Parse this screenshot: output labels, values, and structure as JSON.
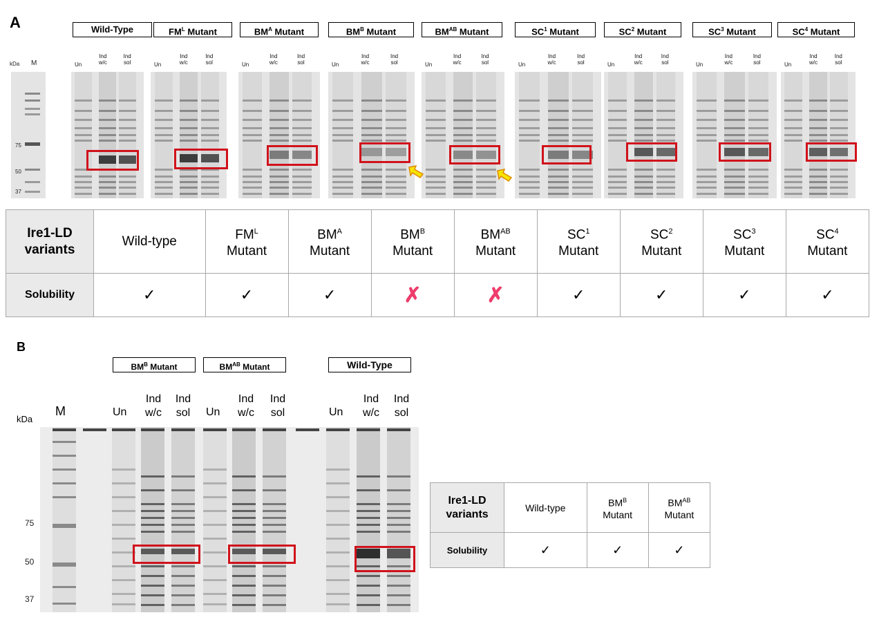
{
  "panel_a": {
    "letter": "A",
    "kda_label": "kDa",
    "marker_label": "M",
    "marker_ticks": [
      "75",
      "50",
      "37"
    ],
    "lane_labels": {
      "un": "Un",
      "wc": "Ind\nw/c",
      "sol": "Ind\nsol"
    },
    "groups": [
      {
        "base": "Wild-Type",
        "sup": "",
        "suffix": ""
      },
      {
        "base": "FM",
        "sup": "L",
        "suffix": " Mutant"
      },
      {
        "base": "BM",
        "sup": "A",
        "suffix": " Mutant"
      },
      {
        "base": "BM",
        "sup": "B",
        "suffix": " Mutant"
      },
      {
        "base": "BM",
        "sup": "AB",
        "suffix": " Mutant"
      },
      {
        "base": "SC",
        "sup": "1",
        "suffix": " Mutant"
      },
      {
        "base": "SC",
        "sup": "2",
        "suffix": " Mutant"
      },
      {
        "base": "SC",
        "sup": "3",
        "suffix": " Mutant"
      },
      {
        "base": "SC",
        "sup": "4",
        "suffix": " Mutant"
      }
    ],
    "table": {
      "row_header": "Ire1-LD variants",
      "solubility_label": "Solubility",
      "columns": [
        {
          "base": "Wild-type",
          "sup": "",
          "line2": ""
        },
        {
          "base": "FM",
          "sup": "L",
          "line2": "Mutant"
        },
        {
          "base": "BM",
          "sup": "A",
          "line2": "Mutant"
        },
        {
          "base": "BM",
          "sup": "B",
          "line2": "Mutant"
        },
        {
          "base": "BM",
          "sup": "AB",
          "line2": "Mutant"
        },
        {
          "base": "SC",
          "sup": "1",
          "line2": "Mutant"
        },
        {
          "base": "SC",
          "sup": "2",
          "line2": "Mutant"
        },
        {
          "base": "SC",
          "sup": "3",
          "line2": "Mutant"
        },
        {
          "base": "SC",
          "sup": "4",
          "line2": "Mutant"
        }
      ],
      "solubility": [
        "✓",
        "✓",
        "✓",
        "✗",
        "✗",
        "✓",
        "✓",
        "✓",
        "✓"
      ]
    }
  },
  "panel_b": {
    "letter": "B",
    "kda_label": "kDa",
    "marker_label": "M",
    "marker_ticks": [
      "75",
      "50",
      "37"
    ],
    "groups": [
      {
        "base": "BM",
        "sup": "B",
        "suffix": " Mutant"
      },
      {
        "base": "BM",
        "sup": "AB",
        "suffix": " Mutant"
      },
      {
        "base": "Wild-Type",
        "sup": "",
        "suffix": ""
      }
    ],
    "lane_labels": {
      "un": "Un",
      "ind": "Ind",
      "wc": "w/c",
      "sol": "sol"
    },
    "table": {
      "row_header": "Ire1-LD variants",
      "solubility_label": "Solubility",
      "columns": [
        {
          "base": "Wild-type",
          "sup": "",
          "line2": ""
        },
        {
          "base": "BM",
          "sup": "B",
          "line2": "Mutant"
        },
        {
          "base": "BM",
          "sup": "AB",
          "line2": "Mutant"
        }
      ],
      "solubility": [
        "✓",
        "✓",
        "✓"
      ]
    }
  },
  "colors": {
    "highlight": "#d0121b",
    "cross": "#ee3d6c",
    "arrow": "#f7e400"
  }
}
